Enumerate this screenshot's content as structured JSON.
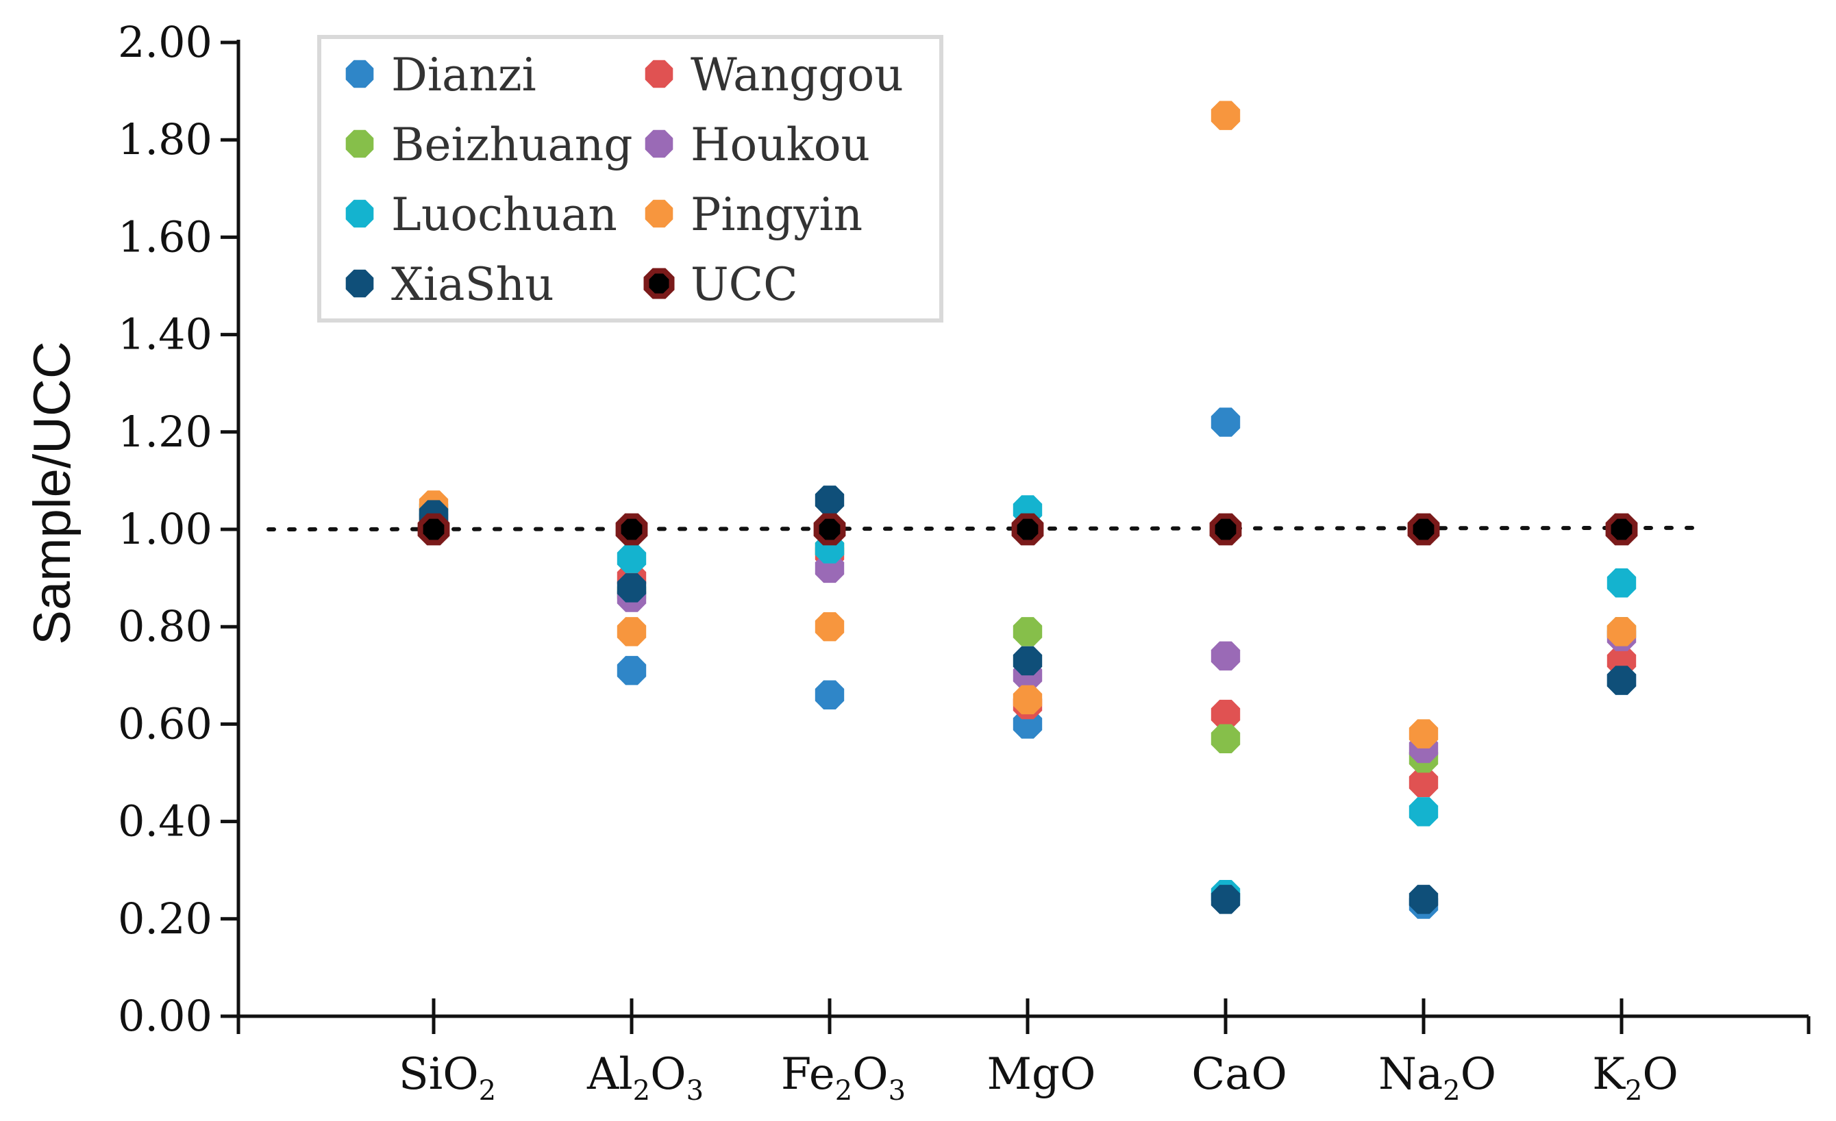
{
  "chart_data": {
    "type": "scatter",
    "title": "",
    "xlabel": "",
    "ylabel": "Sample/UCC",
    "ylim": [
      0,
      2.0
    ],
    "yticks": [
      0.0,
      0.2,
      0.4,
      0.6,
      0.8,
      1.0,
      1.2,
      1.4,
      1.6,
      1.8,
      2.0
    ],
    "ytick_labels": [
      "0.00",
      "0.20",
      "0.40",
      "0.60",
      "0.80",
      "1.00",
      "1.20",
      "1.40",
      "1.60",
      "1.80",
      "2.00"
    ],
    "categories": [
      {
        "base": "SiO",
        "sub": "2",
        "tail": ""
      },
      {
        "base": "Al",
        "sub": "2",
        "tail": "O",
        "sub2": "3"
      },
      {
        "base": "Fe",
        "sub": "2",
        "tail": "O",
        "sub2": "3"
      },
      {
        "base": "MgO",
        "sub": "",
        "tail": ""
      },
      {
        "base": "CaO",
        "sub": "",
        "tail": ""
      },
      {
        "base": "Na",
        "sub": "2",
        "tail": "O"
      },
      {
        "base": "K",
        "sub": "2",
        "tail": "O"
      }
    ],
    "reference_line": 1.0,
    "legend_position": "top-left",
    "series": [
      {
        "name": "Dianzi",
        "color": "#2f86c8",
        "values": [
          1.02,
          0.71,
          0.66,
          0.6,
          1.22,
          0.23,
          0.69
        ]
      },
      {
        "name": "Wanggou",
        "color": "#e05252",
        "values": [
          1.03,
          0.9,
          0.95,
          0.64,
          0.62,
          0.48,
          0.73
        ]
      },
      {
        "name": "Beizhuang",
        "color": "#86bf4a",
        "values": [
          1.02,
          0.87,
          0.96,
          0.79,
          0.57,
          0.53,
          0.79
        ]
      },
      {
        "name": "Houkou",
        "color": "#9a6ab6",
        "values": [
          1.02,
          0.86,
          0.92,
          0.7,
          0.74,
          0.55,
          0.78
        ]
      },
      {
        "name": "Luochuan",
        "color": "#14b3cf",
        "values": [
          1.04,
          0.94,
          0.96,
          1.04,
          0.25,
          0.42,
          0.89
        ]
      },
      {
        "name": "Pingyin",
        "color": "#f7963e",
        "values": [
          1.05,
          0.79,
          0.8,
          0.65,
          1.85,
          0.58,
          0.79
        ]
      },
      {
        "name": "XiaShu",
        "color": "#0f4f79",
        "values": [
          1.03,
          0.88,
          1.06,
          0.73,
          0.24,
          0.24,
          0.69
        ]
      },
      {
        "name": "UCC",
        "color": "#000000",
        "edge": "#7a1a1a",
        "values": [
          1.0,
          1.0,
          1.0,
          1.0,
          1.0,
          1.0,
          1.0
        ]
      }
    ]
  }
}
